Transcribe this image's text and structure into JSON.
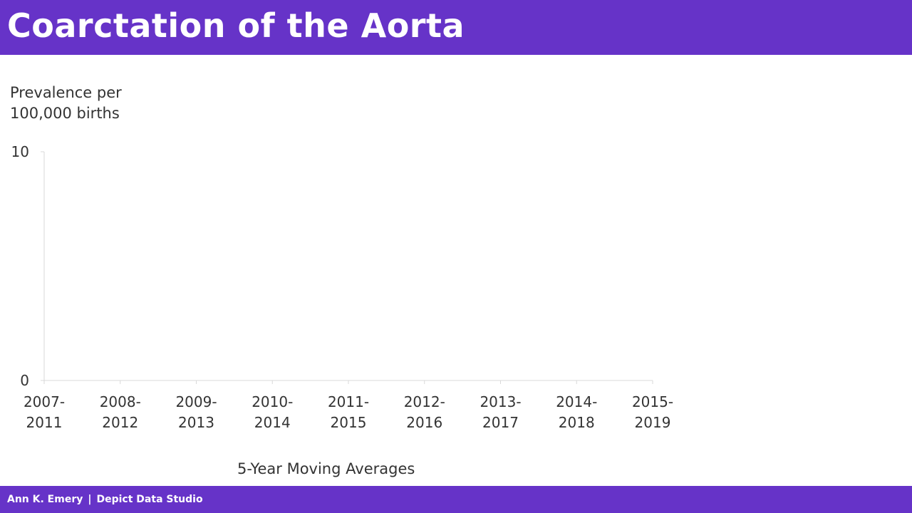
{
  "header": {
    "title": "Coarctation of the Aorta"
  },
  "footer": {
    "author": "Ann K. Emery",
    "separator": "|",
    "studio": "Depict Data Studio"
  },
  "colors": {
    "brand": "#6633c8",
    "text": "#333333",
    "axis": "#d9d9d9"
  },
  "chart_data": {
    "type": "line",
    "ylabel_lines": [
      "Prevalence per",
      "100,000 births"
    ],
    "xlabel": "5-Year Moving Averages",
    "ylim": [
      0,
      10
    ],
    "y_ticks": [
      "10",
      "0"
    ],
    "categories": [
      [
        "2007-",
        "2011"
      ],
      [
        "2008-",
        "2012"
      ],
      [
        "2009-",
        "2013"
      ],
      [
        "2010-",
        "2014"
      ],
      [
        "2011-",
        "2015"
      ],
      [
        "2012-",
        "2016"
      ],
      [
        "2013-",
        "2017"
      ],
      [
        "2014-",
        "2018"
      ],
      [
        "2015-",
        "2019"
      ]
    ],
    "series": [],
    "grid": false
  }
}
